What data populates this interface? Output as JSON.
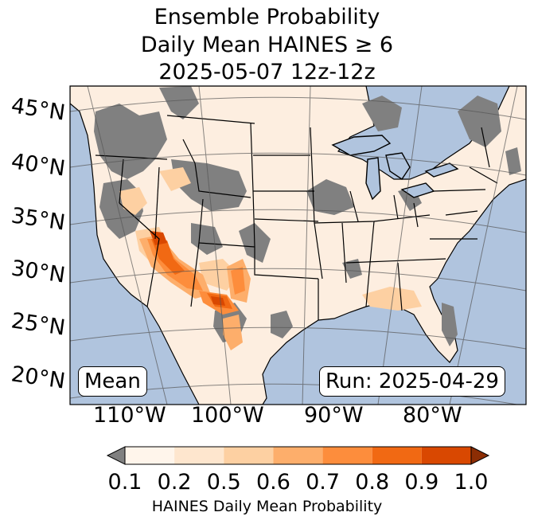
{
  "title": {
    "line1": "Ensemble Probability",
    "line2": "Daily Mean HAINES ≥ 6",
    "line3": "2025-05-07 12z-12z"
  },
  "map": {
    "projection": "lambert-conformal",
    "region": "CONUS",
    "ocean_color": "#b0c4de",
    "missing_color": "#808080",
    "lat_labels": [
      "45°N",
      "40°N",
      "35°N",
      "30°N",
      "25°N",
      "20°N"
    ],
    "lon_labels": [
      "110°W",
      "100°W",
      "90°W",
      "80°W"
    ],
    "highest_probability_area": "Southwest (Arizona, New Mexico, West Texas)"
  },
  "annotations": {
    "stat": "Mean",
    "run": "Run: 2025-04-29"
  },
  "colorbar": {
    "ticks": [
      "0.1",
      "0.2",
      "0.5",
      "0.6",
      "0.7",
      "0.8",
      "0.9",
      "1.0"
    ],
    "colors": [
      "#fff5eb",
      "#fee6ce",
      "#fdd0a2",
      "#fdae6b",
      "#fd8d3c",
      "#f16913",
      "#d94801"
    ],
    "under_color": "#808080",
    "over_color": "#8c2d04",
    "label": "HAINES Daily Mean Probability"
  }
}
